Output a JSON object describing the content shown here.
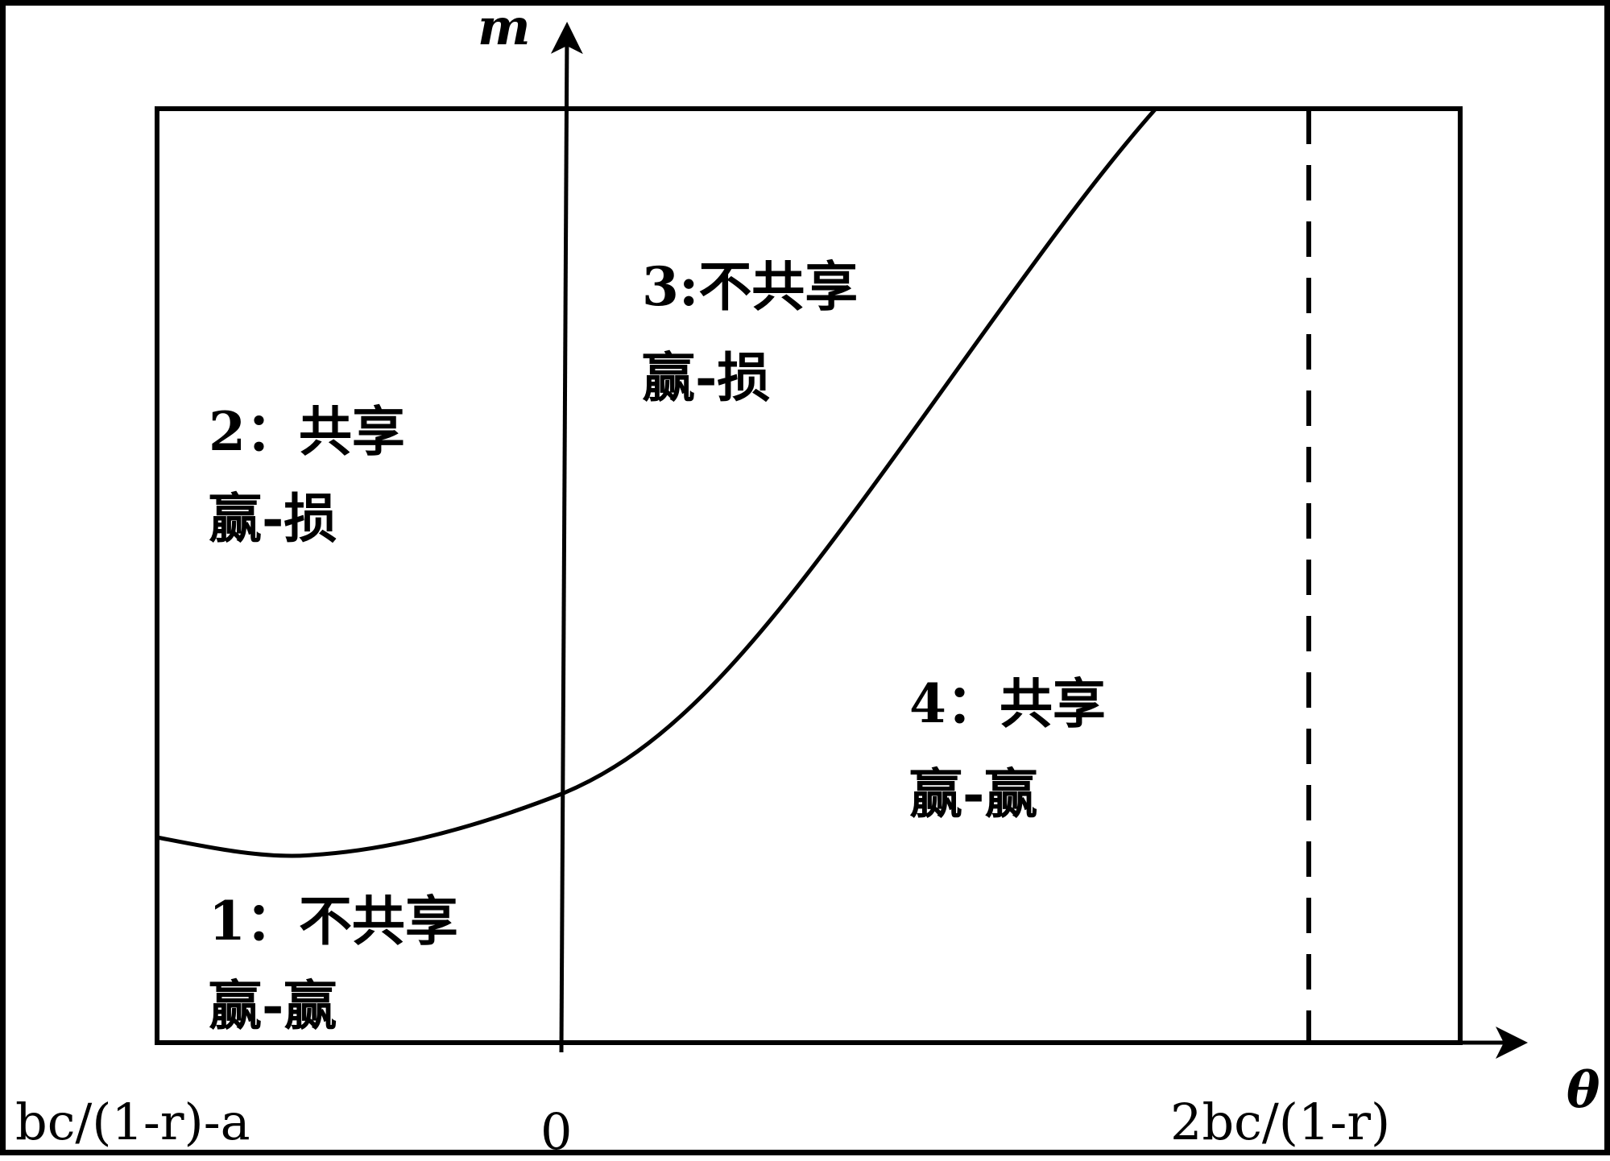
{
  "diagram": {
    "axes": {
      "y_label": "m",
      "x_label": "θ"
    },
    "x_ticks": {
      "left": "bc/(1-r)-a",
      "origin": "0",
      "right": "2bc/(1-r)"
    },
    "regions": [
      {
        "number": "1",
        "sep": "：",
        "title": "不共享",
        "outcome": "赢-赢"
      },
      {
        "number": "2",
        "sep": "：",
        "title": "共享",
        "outcome": "赢-损"
      },
      {
        "number": "3",
        "sep": ":",
        "title": "不共享",
        "outcome": "赢-损"
      },
      {
        "number": "4",
        "sep": "：",
        "title": "共享",
        "outcome": "赢-赢"
      }
    ],
    "colors": {
      "line": "#000000",
      "background": "#ffffff"
    }
  }
}
